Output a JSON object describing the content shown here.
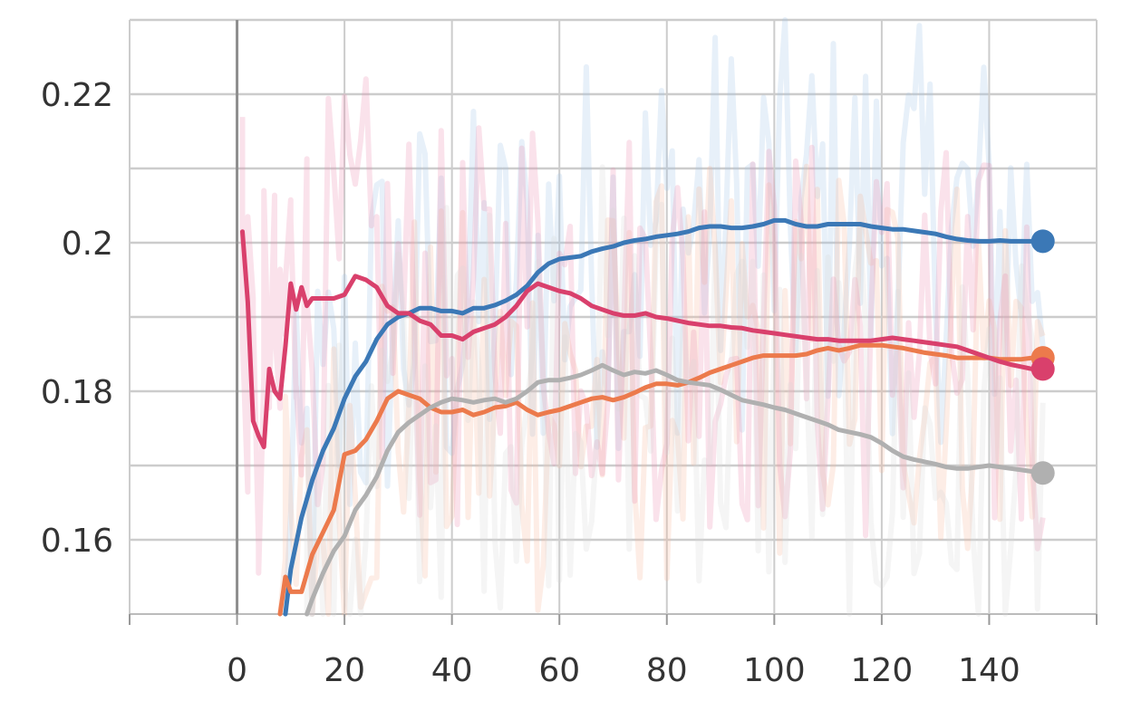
{
  "chart_data": {
    "type": "line",
    "title": "",
    "xlabel": "",
    "ylabel": "",
    "xlim": [
      -20,
      160
    ],
    "ylim": [
      0.15,
      0.23
    ],
    "grid": true,
    "legend": "none",
    "x_ticks": [
      0,
      20,
      40,
      60,
      80,
      100,
      120,
      140
    ],
    "x_tick_labels": [
      "0",
      "20",
      "40",
      "60",
      "80",
      "100",
      "120",
      "140"
    ],
    "y_ticks": [
      0.16,
      0.18,
      0.2,
      0.22
    ],
    "y_tick_labels": [
      "0.16",
      "0.18",
      "0.2",
      "0.22"
    ],
    "raw_series_opacity": 0.25,
    "series": [
      {
        "color": "#3b78b6",
        "end_marker": true,
        "smoothed": [
          [
            9,
            0.145
          ],
          [
            10,
            0.156
          ],
          [
            12,
            0.163
          ],
          [
            14,
            0.168
          ],
          [
            16,
            0.172
          ],
          [
            18,
            0.175
          ],
          [
            20,
            0.179
          ],
          [
            22,
            0.182
          ],
          [
            24,
            0.184
          ],
          [
            26,
            0.187
          ],
          [
            28,
            0.189
          ],
          [
            30,
            0.19
          ],
          [
            32,
            0.1905
          ],
          [
            34,
            0.1912
          ],
          [
            36,
            0.1912
          ],
          [
            38,
            0.1908
          ],
          [
            40,
            0.1908
          ],
          [
            42,
            0.1905
          ],
          [
            44,
            0.1912
          ],
          [
            46,
            0.1912
          ],
          [
            48,
            0.1916
          ],
          [
            50,
            0.1922
          ],
          [
            52,
            0.193
          ],
          [
            54,
            0.1942
          ],
          [
            56,
            0.196
          ],
          [
            58,
            0.1972
          ],
          [
            60,
            0.1978
          ],
          [
            62,
            0.198
          ],
          [
            64,
            0.1982
          ],
          [
            66,
            0.1988
          ],
          [
            68,
            0.1992
          ],
          [
            70,
            0.1995
          ],
          [
            72,
            0.2
          ],
          [
            74,
            0.2003
          ],
          [
            76,
            0.2005
          ],
          [
            78,
            0.2008
          ],
          [
            80,
            0.201
          ],
          [
            82,
            0.2012
          ],
          [
            84,
            0.2015
          ],
          [
            86,
            0.202
          ],
          [
            88,
            0.2022
          ],
          [
            90,
            0.2022
          ],
          [
            92,
            0.202
          ],
          [
            94,
            0.202
          ],
          [
            96,
            0.2022
          ],
          [
            98,
            0.2025
          ],
          [
            100,
            0.203
          ],
          [
            102,
            0.203
          ],
          [
            104,
            0.2025
          ],
          [
            106,
            0.2022
          ],
          [
            108,
            0.2022
          ],
          [
            110,
            0.2025
          ],
          [
            112,
            0.2025
          ],
          [
            114,
            0.2025
          ],
          [
            116,
            0.2025
          ],
          [
            118,
            0.2022
          ],
          [
            120,
            0.202
          ],
          [
            122,
            0.2018
          ],
          [
            124,
            0.2018
          ],
          [
            126,
            0.2016
          ],
          [
            128,
            0.2014
          ],
          [
            130,
            0.2012
          ],
          [
            132,
            0.2008
          ],
          [
            134,
            0.2005
          ],
          [
            136,
            0.2003
          ],
          [
            138,
            0.2002
          ],
          [
            140,
            0.2002
          ],
          [
            142,
            0.2003
          ],
          [
            144,
            0.2002
          ],
          [
            146,
            0.2002
          ],
          [
            148,
            0.2002
          ],
          [
            150,
            0.2002
          ]
        ]
      },
      {
        "color": "#ec7a4c",
        "end_marker": true,
        "smoothed": [
          [
            8,
            0.15
          ],
          [
            9,
            0.155
          ],
          [
            10,
            0.153
          ],
          [
            12,
            0.153
          ],
          [
            14,
            0.158
          ],
          [
            16,
            0.161
          ],
          [
            18,
            0.164
          ],
          [
            20,
            0.1715
          ],
          [
            22,
            0.172
          ],
          [
            24,
            0.1735
          ],
          [
            26,
            0.176
          ],
          [
            28,
            0.179
          ],
          [
            30,
            0.18
          ],
          [
            32,
            0.1795
          ],
          [
            34,
            0.179
          ],
          [
            36,
            0.1778
          ],
          [
            38,
            0.1772
          ],
          [
            40,
            0.1772
          ],
          [
            42,
            0.1775
          ],
          [
            44,
            0.1768
          ],
          [
            46,
            0.1772
          ],
          [
            48,
            0.1778
          ],
          [
            50,
            0.178
          ],
          [
            52,
            0.1785
          ],
          [
            54,
            0.1775
          ],
          [
            56,
            0.1768
          ],
          [
            58,
            0.1772
          ],
          [
            60,
            0.1775
          ],
          [
            62,
            0.178
          ],
          [
            64,
            0.1785
          ],
          [
            66,
            0.179
          ],
          [
            68,
            0.1792
          ],
          [
            70,
            0.1788
          ],
          [
            72,
            0.1792
          ],
          [
            74,
            0.1798
          ],
          [
            76,
            0.1805
          ],
          [
            78,
            0.181
          ],
          [
            80,
            0.181
          ],
          [
            82,
            0.1808
          ],
          [
            84,
            0.1812
          ],
          [
            86,
            0.1818
          ],
          [
            88,
            0.1825
          ],
          [
            90,
            0.183
          ],
          [
            92,
            0.1835
          ],
          [
            94,
            0.184
          ],
          [
            96,
            0.1845
          ],
          [
            98,
            0.1848
          ],
          [
            100,
            0.1848
          ],
          [
            102,
            0.1848
          ],
          [
            104,
            0.1848
          ],
          [
            106,
            0.185
          ],
          [
            108,
            0.1855
          ],
          [
            110,
            0.1858
          ],
          [
            112,
            0.1855
          ],
          [
            114,
            0.1858
          ],
          [
            116,
            0.1862
          ],
          [
            118,
            0.1862
          ],
          [
            120,
            0.1862
          ],
          [
            122,
            0.186
          ],
          [
            124,
            0.1858
          ],
          [
            126,
            0.1855
          ],
          [
            128,
            0.1852
          ],
          [
            130,
            0.185
          ],
          [
            132,
            0.1848
          ],
          [
            134,
            0.1845
          ],
          [
            136,
            0.1845
          ],
          [
            138,
            0.1845
          ],
          [
            140,
            0.1845
          ],
          [
            142,
            0.1843
          ],
          [
            144,
            0.1843
          ],
          [
            146,
            0.1843
          ],
          [
            148,
            0.1845
          ],
          [
            150,
            0.1845
          ]
        ]
      },
      {
        "color": "#d9406c",
        "end_marker": true,
        "smoothed": [
          [
            1,
            0.2015
          ],
          [
            2,
            0.192
          ],
          [
            3,
            0.176
          ],
          [
            4,
            0.174
          ],
          [
            5,
            0.1725
          ],
          [
            6,
            0.183
          ],
          [
            7,
            0.18
          ],
          [
            8,
            0.179
          ],
          [
            9,
            0.186
          ],
          [
            10,
            0.1945
          ],
          [
            11,
            0.191
          ],
          [
            12,
            0.194
          ],
          [
            13,
            0.1915
          ],
          [
            14,
            0.1925
          ],
          [
            16,
            0.1925
          ],
          [
            18,
            0.1925
          ],
          [
            20,
            0.193
          ],
          [
            22,
            0.1955
          ],
          [
            24,
            0.195
          ],
          [
            26,
            0.194
          ],
          [
            28,
            0.1915
          ],
          [
            30,
            0.1905
          ],
          [
            32,
            0.1905
          ],
          [
            34,
            0.1895
          ],
          [
            36,
            0.189
          ],
          [
            38,
            0.1875
          ],
          [
            40,
            0.1875
          ],
          [
            42,
            0.187
          ],
          [
            44,
            0.188
          ],
          [
            46,
            0.1885
          ],
          [
            48,
            0.189
          ],
          [
            50,
            0.19
          ],
          [
            52,
            0.1915
          ],
          [
            54,
            0.1935
          ],
          [
            56,
            0.1945
          ],
          [
            58,
            0.194
          ],
          [
            60,
            0.1935
          ],
          [
            62,
            0.1932
          ],
          [
            64,
            0.1925
          ],
          [
            66,
            0.1915
          ],
          [
            68,
            0.191
          ],
          [
            70,
            0.1905
          ],
          [
            72,
            0.1902
          ],
          [
            74,
            0.1902
          ],
          [
            76,
            0.1905
          ],
          [
            78,
            0.19
          ],
          [
            80,
            0.1898
          ],
          [
            82,
            0.1895
          ],
          [
            84,
            0.1892
          ],
          [
            86,
            0.189
          ],
          [
            88,
            0.1888
          ],
          [
            90,
            0.1888
          ],
          [
            92,
            0.1886
          ],
          [
            94,
            0.1885
          ],
          [
            96,
            0.1882
          ],
          [
            98,
            0.188
          ],
          [
            100,
            0.1878
          ],
          [
            102,
            0.1876
          ],
          [
            104,
            0.1874
          ],
          [
            106,
            0.1872
          ],
          [
            108,
            0.187
          ],
          [
            110,
            0.187
          ],
          [
            112,
            0.1868
          ],
          [
            114,
            0.1868
          ],
          [
            116,
            0.1868
          ],
          [
            118,
            0.1868
          ],
          [
            120,
            0.187
          ],
          [
            122,
            0.1872
          ],
          [
            124,
            0.187
          ],
          [
            126,
            0.1868
          ],
          [
            128,
            0.1866
          ],
          [
            130,
            0.1864
          ],
          [
            132,
            0.1862
          ],
          [
            134,
            0.186
          ],
          [
            136,
            0.1855
          ],
          [
            138,
            0.185
          ],
          [
            140,
            0.1845
          ],
          [
            142,
            0.184
          ],
          [
            144,
            0.1836
          ],
          [
            146,
            0.1833
          ],
          [
            148,
            0.183
          ],
          [
            150,
            0.183
          ]
        ]
      },
      {
        "color": "#b0b0b0",
        "end_marker": true,
        "smoothed": [
          [
            13,
            0.148
          ],
          [
            14,
            0.152
          ],
          [
            16,
            0.1555
          ],
          [
            18,
            0.1585
          ],
          [
            20,
            0.1605
          ],
          [
            22,
            0.164
          ],
          [
            24,
            0.166
          ],
          [
            26,
            0.1685
          ],
          [
            28,
            0.172
          ],
          [
            30,
            0.1745
          ],
          [
            32,
            0.1758
          ],
          [
            34,
            0.1768
          ],
          [
            36,
            0.1778
          ],
          [
            38,
            0.1785
          ],
          [
            40,
            0.179
          ],
          [
            42,
            0.1788
          ],
          [
            44,
            0.1785
          ],
          [
            46,
            0.1788
          ],
          [
            48,
            0.179
          ],
          [
            50,
            0.1785
          ],
          [
            52,
            0.179
          ],
          [
            54,
            0.18
          ],
          [
            56,
            0.1812
          ],
          [
            58,
            0.1815
          ],
          [
            60,
            0.1815
          ],
          [
            62,
            0.1818
          ],
          [
            64,
            0.1822
          ],
          [
            66,
            0.1828
          ],
          [
            68,
            0.1835
          ],
          [
            70,
            0.1828
          ],
          [
            72,
            0.1822
          ],
          [
            74,
            0.1826
          ],
          [
            76,
            0.1824
          ],
          [
            78,
            0.1828
          ],
          [
            80,
            0.1822
          ],
          [
            82,
            0.1815
          ],
          [
            84,
            0.1812
          ],
          [
            86,
            0.181
          ],
          [
            88,
            0.1808
          ],
          [
            90,
            0.1802
          ],
          [
            92,
            0.1795
          ],
          [
            94,
            0.1788
          ],
          [
            96,
            0.1785
          ],
          [
            98,
            0.1782
          ],
          [
            100,
            0.1778
          ],
          [
            102,
            0.1775
          ],
          [
            104,
            0.177
          ],
          [
            106,
            0.1765
          ],
          [
            108,
            0.176
          ],
          [
            110,
            0.1755
          ],
          [
            112,
            0.1748
          ],
          [
            114,
            0.1745
          ],
          [
            116,
            0.1742
          ],
          [
            118,
            0.1738
          ],
          [
            120,
            0.173
          ],
          [
            122,
            0.172
          ],
          [
            124,
            0.1712
          ],
          [
            126,
            0.1708
          ],
          [
            128,
            0.1705
          ],
          [
            130,
            0.1702
          ],
          [
            132,
            0.1698
          ],
          [
            134,
            0.1696
          ],
          [
            136,
            0.1696
          ],
          [
            138,
            0.1698
          ],
          [
            140,
            0.17
          ],
          [
            142,
            0.1698
          ],
          [
            144,
            0.1696
          ],
          [
            146,
            0.1694
          ],
          [
            148,
            0.1692
          ],
          [
            150,
            0.169
          ]
        ]
      }
    ]
  }
}
